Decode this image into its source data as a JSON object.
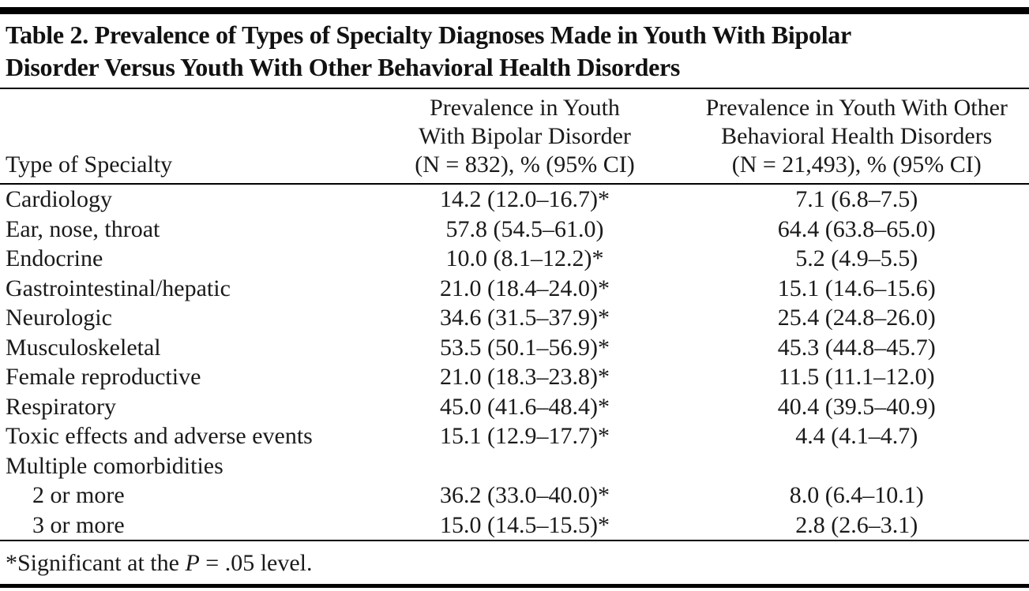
{
  "colors": {
    "text": "#1a1a1a",
    "rule": "#000000",
    "background": "#ffffff"
  },
  "table": {
    "title_lines": [
      "Table 2. Prevalence of Types of Specialty Diagnoses Made in Youth With Bipolar",
      "Disorder Versus Youth With Other Behavioral Health Disorders"
    ],
    "header": {
      "specialty_label": "Type of Specialty",
      "bipolar_lines": [
        "Prevalence in Youth",
        "With Bipolar Disorder",
        "(N = 832), % (95% CI)"
      ],
      "other_lines": [
        "Prevalence in Youth With Other",
        "Behavioral Health Disorders",
        "(N = 21,493), % (95% CI)"
      ]
    },
    "rows": [
      {
        "specialty": "Cardiology",
        "bipolar": "14.2 (12.0–16.7)*",
        "other": "7.1 (6.8–7.5)",
        "indent": false
      },
      {
        "specialty": "Ear, nose, throat",
        "bipolar": "57.8 (54.5–61.0)",
        "other": "64.4 (63.8–65.0)",
        "indent": false
      },
      {
        "specialty": "Endocrine",
        "bipolar": "10.0 (8.1–12.2)*",
        "other": "5.2 (4.9–5.5)",
        "indent": false
      },
      {
        "specialty": "Gastrointestinal/hepatic",
        "bipolar": "21.0 (18.4–24.0)*",
        "other": "15.1 (14.6–15.6)",
        "indent": false
      },
      {
        "specialty": "Neurologic",
        "bipolar": "34.6 (31.5–37.9)*",
        "other": "25.4 (24.8–26.0)",
        "indent": false
      },
      {
        "specialty": "Musculoskeletal",
        "bipolar": "53.5 (50.1–56.9)*",
        "other": "45.3 (44.8–45.7)",
        "indent": false
      },
      {
        "specialty": "Female reproductive",
        "bipolar": "21.0 (18.3–23.8)*",
        "other": "11.5 (11.1–12.0)",
        "indent": false
      },
      {
        "specialty": "Respiratory",
        "bipolar": "45.0 (41.6–48.4)*",
        "other": "40.4 (39.5–40.9)",
        "indent": false
      },
      {
        "specialty": "Toxic effects and adverse events",
        "bipolar": "15.1 (12.9–17.7)*",
        "other": "4.4 (4.1–4.7)",
        "indent": false
      },
      {
        "specialty": "Multiple comorbidities",
        "bipolar": "",
        "other": "",
        "indent": false
      },
      {
        "specialty": "2 or more",
        "bipolar": "36.2 (33.0–40.0)*",
        "other": "8.0 (6.4–10.1)",
        "indent": true
      },
      {
        "specialty": "3 or more",
        "bipolar": "15.0 (14.5–15.5)*",
        "other": "2.8 (2.6–3.1)",
        "indent": true
      }
    ],
    "footnote": {
      "before_italic": "*Significant at the ",
      "italic": "P",
      "after_italic": " = .05 level."
    }
  }
}
